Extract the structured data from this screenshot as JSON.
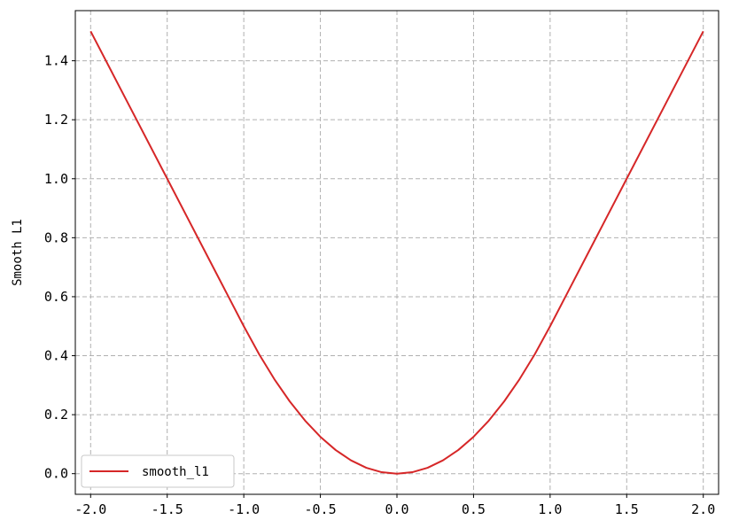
{
  "chart_data": {
    "type": "line",
    "title": "",
    "xlabel": "",
    "ylabel": "Smooth L1",
    "xlim": [
      -2.1,
      2.1
    ],
    "ylim": [
      -0.07,
      1.57
    ],
    "x_ticks": [
      -2.0,
      -1.5,
      -1.0,
      -0.5,
      0.0,
      0.5,
      1.0,
      1.5,
      2.0
    ],
    "x_tick_labels": [
      "-2.0",
      "-1.5",
      "-1.0",
      "-0.5",
      "0.0",
      "0.5",
      "1.0",
      "1.5",
      "2.0"
    ],
    "y_ticks": [
      0.0,
      0.2,
      0.4,
      0.6,
      0.8,
      1.0,
      1.2,
      1.4
    ],
    "y_tick_labels": [
      "0.0",
      "0.2",
      "0.4",
      "0.6",
      "0.8",
      "1.0",
      "1.2",
      "1.4"
    ],
    "grid": true,
    "legend_position": "lower-left",
    "series": [
      {
        "name": "smooth_l1",
        "color": "#d62728",
        "x": [
          -2.0,
          -1.75,
          -1.5,
          -1.25,
          -1.0,
          -0.9,
          -0.8,
          -0.7,
          -0.6,
          -0.5,
          -0.4,
          -0.3,
          -0.2,
          -0.1,
          0.0,
          0.1,
          0.2,
          0.3,
          0.4,
          0.5,
          0.6,
          0.7,
          0.8,
          0.9,
          1.0,
          1.25,
          1.5,
          1.75,
          2.0
        ],
        "y": [
          1.5,
          1.25,
          1.0,
          0.75,
          0.5,
          0.405,
          0.32,
          0.245,
          0.18,
          0.125,
          0.08,
          0.045,
          0.02,
          0.005,
          0.0,
          0.005,
          0.02,
          0.045,
          0.08,
          0.125,
          0.18,
          0.245,
          0.32,
          0.405,
          0.5,
          0.75,
          1.0,
          1.25,
          1.5
        ]
      }
    ]
  }
}
